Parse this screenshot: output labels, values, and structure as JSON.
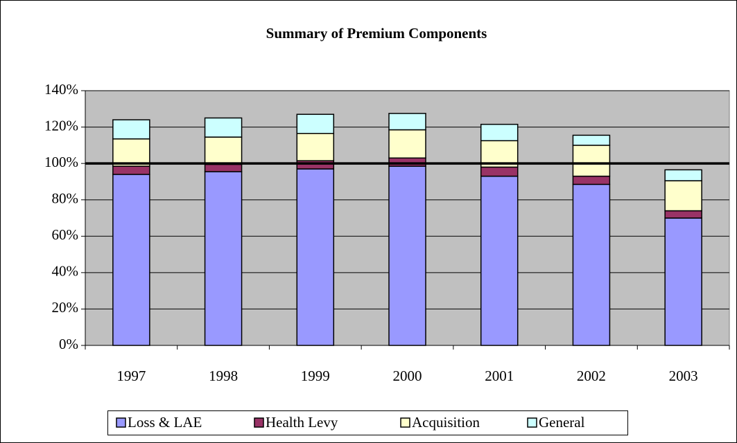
{
  "chart_data": {
    "type": "stacked_bar",
    "title": "Summary of Premium Components",
    "categories": [
      "1997",
      "1998",
      "1999",
      "2000",
      "2001",
      "2002",
      "2003"
    ],
    "series": [
      {
        "name": "Loss & LAE",
        "color": "#9999ff",
        "values": [
          94,
          95.5,
          97,
          98.5,
          93,
          88.5,
          70
        ]
      },
      {
        "name": "Health Levy",
        "color": "#993366",
        "values": [
          4.5,
          4,
          4.5,
          4.5,
          5,
          4.5,
          4
        ]
      },
      {
        "name": "Acquisition",
        "color": "#ffffcc",
        "values": [
          15,
          15,
          15,
          15.5,
          14.5,
          17,
          16.5
        ]
      },
      {
        "name": "General",
        "color": "#ccffff",
        "values": [
          10.5,
          10.5,
          10.5,
          9,
          9,
          5.5,
          6
        ]
      }
    ],
    "ylim": [
      0,
      140
    ],
    "yticks": [
      {
        "value": 0,
        "label": "0%"
      },
      {
        "value": 20,
        "label": "20%"
      },
      {
        "value": 40,
        "label": "40%"
      },
      {
        "value": 60,
        "label": "60%"
      },
      {
        "value": 80,
        "label": "80%"
      },
      {
        "value": 100,
        "label": "100%"
      },
      {
        "value": 120,
        "label": "120%"
      },
      {
        "value": 140,
        "label": "140%"
      }
    ],
    "reference_line": 100,
    "grid": true,
    "legend": "bottom"
  }
}
